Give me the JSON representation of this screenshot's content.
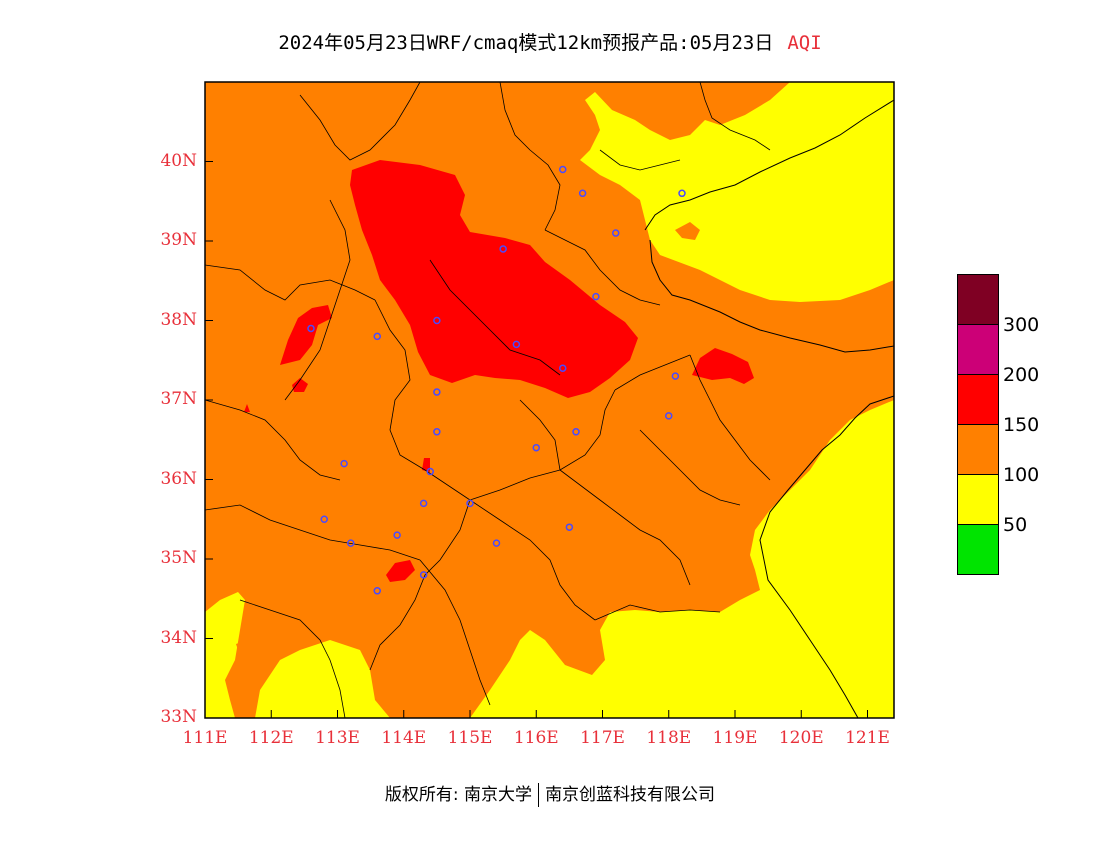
{
  "header": {
    "title": "2024年05月23日WRF/cmaq模式12km预报产品:05月23日",
    "variable": "AQI"
  },
  "map": {
    "lon_range": [
      111,
      121.4
    ],
    "lat_range": [
      33,
      41
    ],
    "x_ticks": [
      "111E",
      "112E",
      "113E",
      "114E",
      "115E",
      "116E",
      "117E",
      "118E",
      "119E",
      "120E",
      "121E"
    ],
    "y_ticks": [
      "33N",
      "34N",
      "35N",
      "36N",
      "37N",
      "38N",
      "39N",
      "40N"
    ],
    "fill_colors": {
      "good": "#ffff00",
      "light": "#ff8000",
      "moderate": "#ff0000"
    },
    "city_markers": [
      [
        116.4,
        39.9
      ],
      [
        116.7,
        39.6
      ],
      [
        117.2,
        39.1
      ],
      [
        118.2,
        39.6
      ],
      [
        115.5,
        38.9
      ],
      [
        116.9,
        38.3
      ],
      [
        114.5,
        38.0
      ],
      [
        112.6,
        37.9
      ],
      [
        113.6,
        37.8
      ],
      [
        115.7,
        37.7
      ],
      [
        116.4,
        37.4
      ],
      [
        118.1,
        37.3
      ],
      [
        114.5,
        37.1
      ],
      [
        114.5,
        36.6
      ],
      [
        116.0,
        36.4
      ],
      [
        116.6,
        36.6
      ],
      [
        118.0,
        36.8
      ],
      [
        113.1,
        36.2
      ],
      [
        114.4,
        36.1
      ],
      [
        114.3,
        35.7
      ],
      [
        115.0,
        35.7
      ],
      [
        112.8,
        35.5
      ],
      [
        113.2,
        35.2
      ],
      [
        113.9,
        35.3
      ],
      [
        115.4,
        35.2
      ],
      [
        116.5,
        35.4
      ],
      [
        114.3,
        34.8
      ],
      [
        113.6,
        34.6
      ]
    ]
  },
  "legend": {
    "colors": [
      "#7f0023",
      "#cc0077",
      "#ff0000",
      "#ff8000",
      "#ffff00",
      "#00e400"
    ],
    "labels": [
      "300",
      "200",
      "150",
      "100",
      "50"
    ]
  },
  "footer": {
    "left": "版权所有: 南京大学",
    "right": "南京创蓝科技有限公司"
  }
}
